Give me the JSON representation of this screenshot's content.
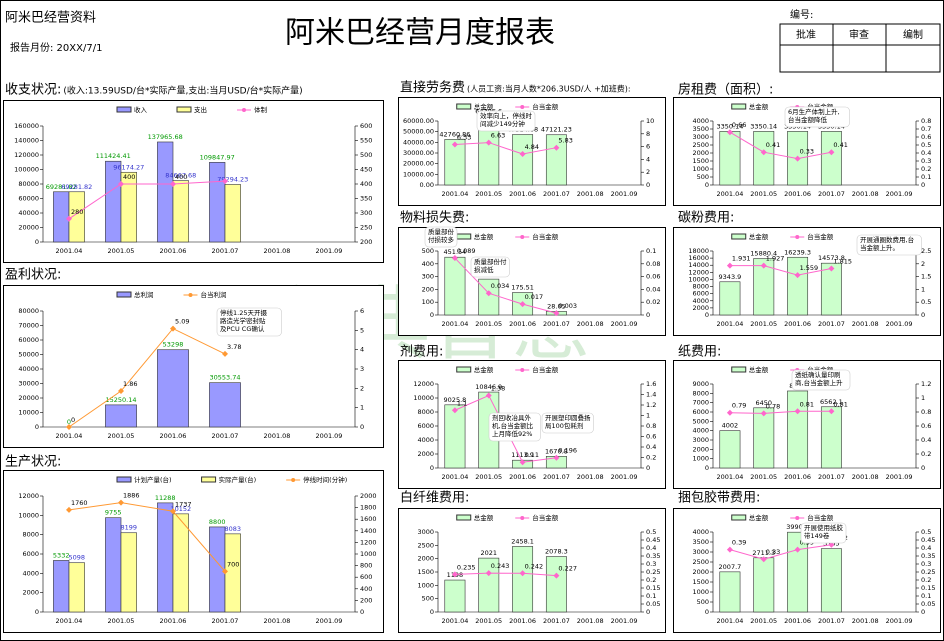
{
  "header": {
    "company": "阿米巴经营资料",
    "report_month": "报告月份: 20XX/7/1",
    "title": "阿米巴经营月度报表",
    "number_label": "编号:",
    "approvals": [
      "批准",
      "审查",
      "编制"
    ]
  },
  "watermark": "华典智慧",
  "chart_data": [
    {
      "type": "combo",
      "title": "收支状况:",
      "subtitle": "(收入:13.59USD/台*实际产量,支出:当月USD/台*实际产量)",
      "categories": [
        "2001.04",
        "2001.05",
        "2001.06",
        "2001.07",
        "2001.08",
        "2001.09"
      ],
      "series": [
        {
          "name": "收入",
          "type": "bar",
          "color": "#9999ff",
          "label_color": "#009900",
          "values": [
            69281.82,
            111424.41,
            137965.68,
            109847.97,
            null,
            null
          ]
        },
        {
          "name": "支出",
          "type": "bar",
          "color": "#ffff99",
          "label_color": "#3333cc",
          "values": [
            69281.82,
            96174.27,
            84667.68,
            79294.23,
            null,
            null
          ]
        },
        {
          "name": "体制",
          "type": "line",
          "axis": "y2",
          "color": "#ff66cc",
          "values": [
            280,
            400,
            400,
            410,
            null,
            null
          ],
          "value_labels": [
            "280",
            "400",
            "400",
            null,
            null,
            null
          ]
        }
      ],
      "ylim": [
        0,
        160000
      ],
      "yticks": [
        0,
        20000,
        40000,
        60000,
        80000,
        100000,
        120000,
        140000,
        160000
      ],
      "y2lim": [
        200,
        600
      ],
      "y2ticks": [
        200,
        250,
        300,
        350,
        400,
        450,
        500,
        550,
        600
      ],
      "annotations": []
    },
    {
      "type": "combo",
      "title": "盈利状况:",
      "categories": [
        "2001.04",
        "2001.05",
        "2001.06",
        "2001.07",
        "2001.08",
        "2001.09"
      ],
      "series": [
        {
          "name": "总利润",
          "type": "bar",
          "color": "#9999ff",
          "label_color": "#009900",
          "values": [
            0,
            15250.14,
            53298,
            30553.74,
            null,
            null
          ]
        },
        {
          "name": "台当利润",
          "type": "line",
          "axis": "y2",
          "color": "#ff9933",
          "values": [
            0,
            1.86,
            5.09,
            3.78,
            null,
            null
          ]
        }
      ],
      "ylim": [
        0,
        80000
      ],
      "yticks": [
        0,
        10000,
        20000,
        30000,
        40000,
        50000,
        60000,
        70000,
        80000
      ],
      "y2lim": [
        0,
        6
      ],
      "y2ticks": [
        0,
        1,
        2,
        3,
        4,
        5,
        6
      ],
      "annotations": [
        [
          "停线1.25天开摄",
          "路造光学密封贴",
          "及PCU CG确认"
        ]
      ]
    },
    {
      "type": "combo",
      "title": "生产状况:",
      "categories": [
        "2001.04",
        "2001.05",
        "2001.06",
        "2001.07",
        "2001.08",
        "2001.09"
      ],
      "series": [
        {
          "name": "计划产量(台)",
          "type": "bar",
          "color": "#9999ff",
          "label_color": "#009900",
          "values": [
            5332,
            9755,
            11288,
            8800,
            null,
            null
          ]
        },
        {
          "name": "实际产量(台)",
          "type": "bar",
          "color": "#ffff99",
          "label_color": "#3333cc",
          "values": [
            5098,
            8199,
            10152,
            8083,
            null,
            null
          ]
        },
        {
          "name": "停线时间(分钟)",
          "type": "line",
          "axis": "y2",
          "color": "#ff9933",
          "values": [
            1760,
            1886,
            1737,
            700,
            null,
            null
          ]
        }
      ],
      "ylim": [
        0,
        12000
      ],
      "yticks": [
        0,
        2000,
        4000,
        6000,
        8000,
        10000,
        12000
      ],
      "y2lim": [
        0,
        2000
      ],
      "y2ticks": [
        0,
        200,
        400,
        600,
        800,
        1000,
        1200,
        1400,
        1600,
        1800,
        2000
      ],
      "annotations": []
    },
    {
      "type": "combo",
      "title": "直接劳务费",
      "subtitle": "(人员工资:当月人数*206.3USD/人 +加班费):",
      "categories": [
        "2001.04",
        "2001.05",
        "2001.06",
        "2001.07",
        "2001.08",
        "2001.09"
      ],
      "series": [
        {
          "name": "总金额",
          "type": "bar",
          "color": "#ccffcc",
          "values": [
            42760.86,
            64386.6,
            47314.68,
            47121.23,
            null,
            null
          ]
        },
        {
          "name": "台当金额",
          "type": "line",
          "axis": "y2",
          "color": "#ff66cc",
          "values": [
            6.33,
            6.63,
            4.84,
            5.83,
            null,
            null
          ]
        }
      ],
      "ylim": [
        0,
        60000
      ],
      "yticks": [
        {
          "value": 0,
          "label": "0.00"
        },
        {
          "value": 10000,
          "label": "10000.00"
        },
        {
          "value": 20000,
          "label": "20000.00"
        },
        {
          "value": 30000,
          "label": "30000.00"
        },
        {
          "value": 40000,
          "label": "40000.00"
        },
        {
          "value": 50000,
          "label": "50000.00"
        },
        {
          "value": 60000,
          "label": "60000.00"
        }
      ],
      "y2lim": [
        0,
        10
      ],
      "y2ticks": [
        0,
        2,
        4,
        6,
        8,
        10
      ],
      "annotations": [
        [
          "效率向上，停线时",
          "间减少149分钟"
        ]
      ]
    },
    {
      "type": "combo",
      "title": "物料损失费:",
      "categories": [
        "2001.04",
        "2001.05",
        "2001.06",
        "2001.07",
        "2001.08",
        "2001.09"
      ],
      "series": [
        {
          "name": "总金额",
          "type": "bar",
          "color": "#ccffcc",
          "values": [
            451.54,
            280.3,
            175.51,
            28.05,
            null,
            null
          ]
        },
        {
          "name": "台当金额",
          "type": "line",
          "axis": "y2",
          "color": "#ff66cc",
          "values": [
            0.089,
            0.034,
            0.017,
            0.003,
            null,
            null
          ]
        }
      ],
      "ylim": [
        0,
        500
      ],
      "yticks": [
        0,
        100,
        200,
        300,
        400,
        500
      ],
      "y2lim": [
        0,
        0.1
      ],
      "y2ticks": [
        0,
        0.02,
        0.04,
        0.06,
        0.08,
        0.1
      ],
      "annotations": [
        [
          "质量部份",
          "付损较多"
        ],
        [
          "质量部份付",
          "损减低"
        ]
      ]
    },
    {
      "type": "combo",
      "title": "剂费用:",
      "categories": [
        "2001.04",
        "2001.05",
        "2001.06",
        "2001.07",
        "2001.08",
        "2001.09"
      ],
      "series": [
        {
          "name": "总金额",
          "type": "bar",
          "color": "#ccffcc",
          "values": [
            9025.8,
            10846.9,
            1113.9,
            1670.8,
            null,
            null
          ]
        },
        {
          "name": "台当金额",
          "type": "line",
          "axis": "y2",
          "color": "#ff66cc",
          "values": [
            1.1,
            1.38,
            0.11,
            0.196,
            null,
            null
          ]
        }
      ],
      "ylim": [
        0,
        12000
      ],
      "yticks": [
        0,
        2000,
        4000,
        6000,
        8000,
        10000,
        12000
      ],
      "y2lim": [
        0,
        1.6
      ],
      "y2ticks": [
        0,
        0.2,
        0.4,
        0.6,
        0.8,
        1,
        1.2,
        1.4,
        1.6
      ],
      "annotations": [
        [
          "剂回收冶具外",
          "机,台当金额比",
          "上月降低92%"
        ],
        [
          "开展塑印圆叠扬",
          "局100包耗剂"
        ]
      ]
    },
    {
      "type": "combo",
      "title": "白纤维费用:",
      "categories": [
        "2001.04",
        "2001.05",
        "2001.06",
        "2001.07",
        "2001.08",
        "2001.09"
      ],
      "series": [
        {
          "name": "总金额",
          "type": "bar",
          "color": "#ccffcc",
          "values": [
            1198,
            2021,
            2458.1,
            2078.3,
            null,
            null
          ]
        },
        {
          "name": "台当金额",
          "type": "line",
          "axis": "y2",
          "color": "#ff66cc",
          "values": [
            0.235,
            0.243,
            0.242,
            0.227,
            null,
            null
          ]
        }
      ],
      "ylim": [
        0,
        3000
      ],
      "yticks": [
        0,
        500,
        1000,
        1500,
        2000,
        2500,
        3000
      ],
      "y2lim": [
        0,
        0.5
      ],
      "y2ticks": [
        0,
        0.05,
        0.1,
        0.15,
        0.2,
        0.25,
        0.3,
        0.35,
        0.4,
        0.45,
        0.5
      ],
      "annotations": []
    },
    {
      "type": "combo",
      "title": "房租费（面积）:",
      "categories": [
        "2001.04",
        "2001.05",
        "2001.06",
        "2001.07",
        "2001.08",
        "2001.09"
      ],
      "series": [
        {
          "name": "总金额",
          "type": "bar",
          "color": "#ccffcc",
          "values": [
            3350.14,
            3350.14,
            3350.14,
            3350.14,
            null,
            null
          ]
        },
        {
          "name": "台当金额",
          "type": "line",
          "axis": "y2",
          "color": "#ff66cc",
          "values": [
            0.66,
            0.41,
            0.33,
            0.41,
            null,
            null
          ]
        }
      ],
      "ylim": [
        0,
        4000
      ],
      "yticks": [
        0,
        500,
        1000,
        1500,
        2000,
        2500,
        3000,
        3500,
        4000
      ],
      "y2lim": [
        0,
        0.8
      ],
      "y2ticks": [
        0,
        0.1,
        0.2,
        0.3,
        0.4,
        0.5,
        0.6,
        0.7,
        0.8
      ],
      "annotations": [
        [
          "6月生产体制上升,",
          "台当金额降低"
        ]
      ]
    },
    {
      "type": "combo",
      "title": "碳粉费用:",
      "categories": [
        "2001.04",
        "2001.05",
        "2001.06",
        "2001.07",
        "2001.08",
        "2001.09"
      ],
      "series": [
        {
          "name": "总金额",
          "type": "bar",
          "color": "#ccffcc",
          "values": [
            9343.9,
            15880.4,
            16239.3,
            14573.8,
            null,
            null
          ]
        },
        {
          "name": "台当金额",
          "type": "line",
          "axis": "y2",
          "color": "#ff66cc",
          "values": [
            1.931,
            1.927,
            1.559,
            1.815,
            null,
            null
          ]
        }
      ],
      "ylim": [
        0,
        18000
      ],
      "yticks": [
        0,
        2000,
        4000,
        6000,
        8000,
        10000,
        12000,
        14000,
        16000,
        18000
      ],
      "y2lim": [
        0,
        2.5
      ],
      "y2ticks": [
        0,
        0.5,
        1,
        1.5,
        2,
        2.5
      ],
      "annotations": [
        [
          "开展通圈数费用,台",
          "当金额上升。"
        ]
      ]
    },
    {
      "type": "combo",
      "title": "纸费用:",
      "categories": [
        "2001.04",
        "2001.05",
        "2001.06",
        "2001.07",
        "2001.08",
        "2001.09"
      ],
      "series": [
        {
          "name": "总金额",
          "type": "bar",
          "color": "#ccffcc",
          "values": [
            4002,
            6450,
            8252,
            6562.1,
            null,
            null
          ]
        },
        {
          "name": "台当金额",
          "type": "line",
          "axis": "y2",
          "color": "#ff66cc",
          "values": [
            0.79,
            0.78,
            0.81,
            0.81,
            null,
            null
          ]
        }
      ],
      "ylim": [
        0,
        9000
      ],
      "yticks": [
        0,
        1000,
        2000,
        3000,
        4000,
        5000,
        6000,
        7000,
        8000,
        9000
      ],
      "y2lim": [
        0,
        1.2
      ],
      "y2ticks": [
        0,
        0.2,
        0.4,
        0.6,
        0.8,
        1,
        1.2
      ],
      "annotations": [
        [
          "透纸确认量印刷",
          "商,台当金额上升"
        ]
      ]
    },
    {
      "type": "combo",
      "title": "捆包胶带费用:",
      "categories": [
        "2001.04",
        "2001.05",
        "2001.06",
        "2001.07",
        "2001.08",
        "2001.09"
      ],
      "series": [
        {
          "name": "总金额",
          "type": "bar",
          "color": "#ccffcc",
          "values": [
            2007.7,
            2711.3,
            3990.4,
            3165,
            null,
            null
          ]
        },
        {
          "name": "台当金额",
          "type": "line",
          "axis": "y2",
          "color": "#ff66cc",
          "values": [
            0.39,
            0.33,
            0.39,
            0.42,
            null,
            null
          ]
        }
      ],
      "ylim": [
        0,
        4000
      ],
      "yticks": [
        0,
        500,
        1000,
        1500,
        2000,
        2500,
        3000,
        3500,
        4000
      ],
      "y2lim": [
        0,
        0.5
      ],
      "y2ticks": [
        0,
        0.05,
        0.1,
        0.15,
        0.2,
        0.25,
        0.3,
        0.35,
        0.4,
        0.45,
        0.5
      ],
      "annotations": [
        [
          "开展使用纸胶",
          "带149卷"
        ]
      ]
    }
  ]
}
